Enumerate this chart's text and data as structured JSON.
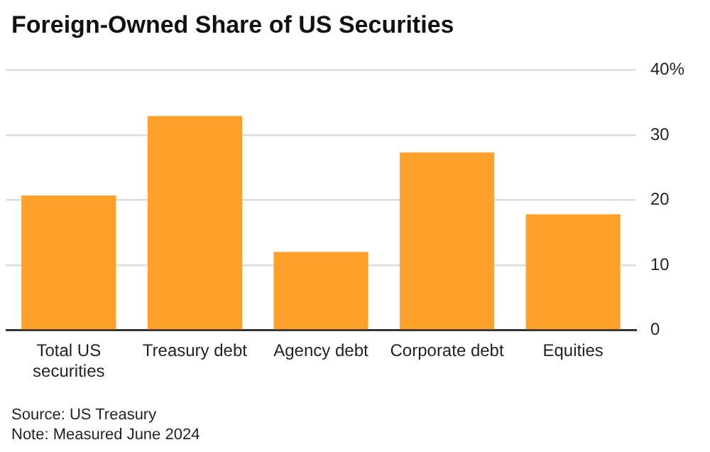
{
  "chart_data": {
    "type": "bar",
    "title": "Foreign-Owned Share of US Securities",
    "categories": [
      "Total US securities",
      "Treasury debt",
      "Agency debt",
      "Corporate debt",
      "Equities"
    ],
    "values": [
      20.7,
      32.9,
      12.0,
      27.3,
      17.8
    ],
    "color": "#ffa12b",
    "ylim": [
      0,
      40
    ],
    "yticks": [
      0,
      10,
      20,
      30,
      {
        "value": 40,
        "label": "40%"
      }
    ],
    "grid": "y",
    "annotations": [
      "Source: US Treasury",
      "Note: Measured June 2024"
    ]
  }
}
